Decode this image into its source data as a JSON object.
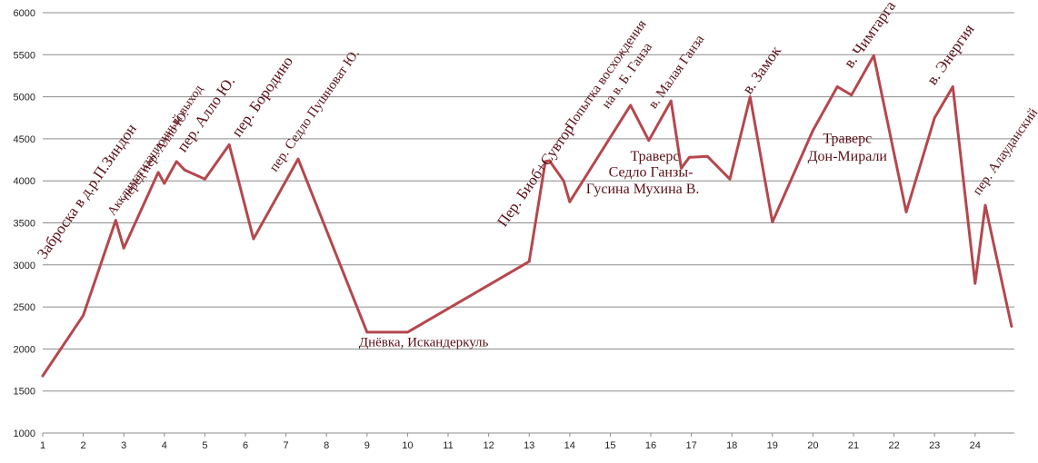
{
  "chart_data": {
    "type": "line",
    "title": "",
    "xlabel": "",
    "ylabel": "",
    "x_ticks": [
      "1",
      "2",
      "3",
      "4",
      "5",
      "6",
      "7",
      "8",
      "9",
      "10",
      "11",
      "12",
      "13",
      "14",
      "15",
      "16",
      "17",
      "18",
      "19",
      "20",
      "21",
      "22",
      "23",
      "24"
    ],
    "y_ticks": [
      "1000",
      "1500",
      "2000",
      "2500",
      "3000",
      "3500",
      "4000",
      "4500",
      "5000",
      "5500",
      "6000"
    ],
    "xlim": [
      1,
      24.9
    ],
    "ylim": [
      1000,
      6000
    ],
    "grid": "horizontal",
    "legend": "none",
    "series": [
      {
        "color": "#b5474d",
        "points": [
          [
            1.0,
            1680
          ],
          [
            2.0,
            2400
          ],
          [
            2.8,
            3530
          ],
          [
            3.0,
            3200
          ],
          [
            3.85,
            4100
          ],
          [
            4.0,
            3970
          ],
          [
            4.3,
            4230
          ],
          [
            4.5,
            4130
          ],
          [
            5.0,
            4020
          ],
          [
            5.6,
            4430
          ],
          [
            6.2,
            3310
          ],
          [
            7.3,
            4260
          ],
          [
            9.0,
            2200
          ],
          [
            10.0,
            2200
          ],
          [
            13.0,
            3040
          ],
          [
            13.4,
            4230
          ],
          [
            13.5,
            4240
          ],
          [
            13.85,
            4000
          ],
          [
            14.0,
            3750
          ],
          [
            15.5,
            4900
          ],
          [
            15.95,
            4480
          ],
          [
            16.5,
            4950
          ],
          [
            16.75,
            4150
          ],
          [
            16.95,
            4280
          ],
          [
            17.4,
            4290
          ],
          [
            17.95,
            4020
          ],
          [
            18.45,
            5000
          ],
          [
            19.0,
            3510
          ],
          [
            20.0,
            4600
          ],
          [
            20.6,
            5120
          ],
          [
            20.95,
            5020
          ],
          [
            21.5,
            5490
          ],
          [
            22.3,
            3630
          ],
          [
            23.0,
            4750
          ],
          [
            23.45,
            5120
          ],
          [
            24.0,
            2780
          ],
          [
            24.25,
            3710
          ],
          [
            24.9,
            2270
          ]
        ]
      }
    ],
    "annotations": [
      {
        "text": "Заброска в д.р.П.Зиндон",
        "x": 1.05,
        "y": 3060,
        "angle": -55,
        "size": 17
      },
      {
        "text": "Акклиматизационный выход",
        "x": 2.75,
        "y": 3580,
        "angle": -55,
        "size": 14
      },
      {
        "text": "перед пер. Алло Ю.",
        "x": 3.1,
        "y": 3760,
        "angle": -55,
        "size": 14
      },
      {
        "text": "пер. Алло Ю.",
        "x": 4.5,
        "y": 4330,
        "angle": -55,
        "size": 17
      },
      {
        "text": "пер. Бородино",
        "x": 5.85,
        "y": 4510,
        "angle": -55,
        "size": 17
      },
      {
        "text": "пер. Седло Пушноват Ю.",
        "x": 6.75,
        "y": 4100,
        "angle": -55,
        "size": 15
      },
      {
        "text": "Днёвка, Искандеркуль",
        "x": 8.8,
        "y": 2030,
        "angle": 0,
        "size": 15
      },
      {
        "text": "Пер. Биоб+Сувтор",
        "x": 12.4,
        "y": 3440,
        "angle": -55,
        "size": 17
      },
      {
        "text": "Попытка восхождения",
        "x": 14.05,
        "y": 4600,
        "angle": -55,
        "size": 15
      },
      {
        "text": "на в. Б. Ганза",
        "x": 14.95,
        "y": 4850,
        "angle": -55,
        "size": 15
      },
      {
        "text": "в. Малая Ганза",
        "x": 16.1,
        "y": 4850,
        "angle": -55,
        "size": 15
      },
      {
        "text": "Траверс",
        "x": 16.1,
        "y": 4240,
        "angle": 0,
        "size": 16,
        "anchor": "middle"
      },
      {
        "text": "Седло Ганзы-",
        "x": 16.0,
        "y": 4050,
        "angle": 0,
        "size": 16,
        "anchor": "middle"
      },
      {
        "text": "Гусина Мухина В.",
        "x": 15.8,
        "y": 3850,
        "angle": 0,
        "size": 16,
        "anchor": "middle"
      },
      {
        "text": "в. Замок",
        "x": 18.45,
        "y": 5020,
        "angle": -55,
        "size": 17
      },
      {
        "text": "Траверс",
        "x": 20.85,
        "y": 4450,
        "angle": 0,
        "size": 16,
        "anchor": "middle"
      },
      {
        "text": "Дон-Мирали",
        "x": 20.85,
        "y": 4240,
        "angle": 0,
        "size": 16,
        "anchor": "middle"
      },
      {
        "text": "в. Чимтарга",
        "x": 20.95,
        "y": 5330,
        "angle": -55,
        "size": 17
      },
      {
        "text": "в. Энергия",
        "x": 23.0,
        "y": 5130,
        "angle": -55,
        "size": 17
      },
      {
        "text": "пер. Алауданский",
        "x": 24.1,
        "y": 3820,
        "angle": -55,
        "size": 15
      }
    ]
  }
}
